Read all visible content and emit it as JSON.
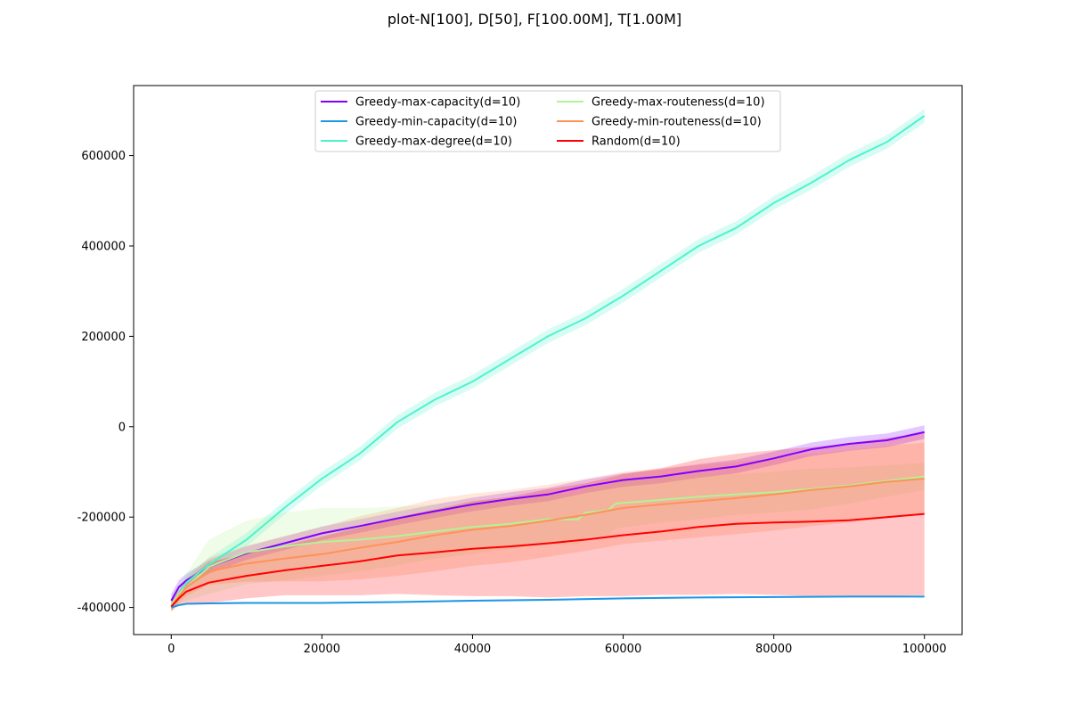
{
  "chart_data": {
    "type": "line",
    "title": "plot-N[100], D[50], F[100.00M], T[1.00M]",
    "xlabel": "",
    "ylabel": "",
    "xlim": [
      -5000,
      105000
    ],
    "ylim": [
      -460000,
      755000
    ],
    "x_ticks": [
      0,
      20000,
      40000,
      60000,
      80000,
      100000
    ],
    "x_tick_labels": [
      "0",
      "20000",
      "40000",
      "60000",
      "80000",
      "100000"
    ],
    "y_ticks": [
      -400000,
      -200000,
      0,
      200000,
      400000,
      600000
    ],
    "y_tick_labels": [
      "-400000",
      "-200000",
      "0",
      "200000",
      "400000",
      "600000"
    ],
    "grid": false,
    "legend_position": "upper-center",
    "legend_columns": 2,
    "series": [
      {
        "name": "Greedy-max-capacity(d=10)",
        "color": "#8000ff",
        "x": [
          0,
          1000,
          2000,
          5000,
          10000,
          15000,
          20000,
          25000,
          30000,
          35000,
          40000,
          45000,
          50000,
          55000,
          60000,
          65000,
          70000,
          75000,
          80000,
          85000,
          90000,
          95000,
          100000
        ],
        "values": [
          -385000,
          -355000,
          -340000,
          -310000,
          -280000,
          -258000,
          -236000,
          -220000,
          -203000,
          -187000,
          -172000,
          -160000,
          -150000,
          -132000,
          -118000,
          -110000,
          -98000,
          -88000,
          -70000,
          -50000,
          -38000,
          -30000,
          -12000
        ],
        "band_width": [
          15000,
          15000,
          15000,
          15000,
          15000,
          15000,
          15000,
          15000,
          15000,
          15000,
          15000,
          15000,
          15000,
          15000,
          15000,
          15000,
          15000,
          15000,
          15000,
          15000,
          15000,
          15000,
          15000
        ]
      },
      {
        "name": "Greedy-min-capacity(d=10)",
        "color": "#1e96e6",
        "x": [
          0,
          1000,
          2000,
          5000,
          10000,
          20000,
          30000,
          40000,
          50000,
          60000,
          70000,
          80000,
          90000,
          100000
        ],
        "values": [
          -400000,
          -395000,
          -392000,
          -391000,
          -390000,
          -390000,
          -388000,
          -385000,
          -383000,
          -380000,
          -378000,
          -377000,
          -376000,
          -376000
        ],
        "band_width": [
          2000,
          2000,
          2000,
          2000,
          2000,
          2000,
          2000,
          2000,
          2000,
          2000,
          2000,
          2000,
          2000,
          2000
        ]
      },
      {
        "name": "Greedy-max-degree(d=10)",
        "color": "#4df3ce",
        "x": [
          0,
          1000,
          2000,
          5000,
          10000,
          15000,
          20000,
          25000,
          30000,
          35000,
          40000,
          45000,
          50000,
          55000,
          60000,
          65000,
          70000,
          75000,
          80000,
          85000,
          90000,
          95000,
          100000
        ],
        "values": [
          -395000,
          -370000,
          -345000,
          -305000,
          -250000,
          -180000,
          -115000,
          -60000,
          10000,
          60000,
          100000,
          150000,
          200000,
          240000,
          290000,
          345000,
          400000,
          440000,
          495000,
          540000,
          590000,
          630000,
          688000
        ],
        "band_width": [
          15000,
          15000,
          15000,
          15000,
          15000,
          15000,
          15000,
          15000,
          15000,
          15000,
          15000,
          15000,
          15000,
          15000,
          15000,
          15000,
          15000,
          15000,
          15000,
          15000,
          15000,
          15000,
          15000
        ]
      },
      {
        "name": "Greedy-max-routeness(d=10)",
        "color": "#b2f396",
        "x": [
          0,
          1000,
          2000,
          5000,
          10000,
          15000,
          20000,
          25000,
          30000,
          35000,
          40000,
          45000,
          50000,
          54000,
          55000,
          58000,
          59000,
          65000,
          70000,
          75000,
          80000,
          85000,
          90000,
          95000,
          100000
        ],
        "values": [
          -395000,
          -370000,
          -355000,
          -310000,
          -278000,
          -265000,
          -255000,
          -250000,
          -242000,
          -232000,
          -222000,
          -215000,
          -205000,
          -205000,
          -190000,
          -185000,
          -170000,
          -162000,
          -155000,
          -150000,
          -145000,
          -138000,
          -130000,
          -120000,
          -110000
        ],
        "band_width": [
          15000,
          20000,
          30000,
          60000,
          70000,
          75000,
          75000,
          70000,
          65000,
          60000,
          60000,
          55000,
          55000,
          55000,
          55000,
          55000,
          55000,
          50000,
          50000,
          45000,
          45000,
          45000,
          40000,
          35000,
          30000
        ]
      },
      {
        "name": "Greedy-min-routeness(d=10)",
        "color": "#ff9256",
        "x": [
          0,
          1000,
          2000,
          5000,
          10000,
          15000,
          20000,
          25000,
          30000,
          35000,
          40000,
          45000,
          50000,
          55000,
          60000,
          65000,
          70000,
          75000,
          80000,
          85000,
          90000,
          95000,
          100000
        ],
        "values": [
          -398000,
          -375000,
          -355000,
          -320000,
          -303000,
          -292000,
          -282000,
          -268000,
          -255000,
          -240000,
          -228000,
          -220000,
          -208000,
          -195000,
          -180000,
          -172000,
          -165000,
          -158000,
          -150000,
          -140000,
          -132000,
          -122000,
          -115000
        ],
        "band_width": [
          10000,
          15000,
          20000,
          30000,
          40000,
          50000,
          60000,
          70000,
          75000,
          80000,
          80000,
          80000,
          80000,
          80000,
          80000,
          80000,
          80000,
          80000,
          80000,
          80000,
          80000,
          80000,
          80000
        ]
      },
      {
        "name": "Random(d=10)",
        "color": "#ff0000",
        "x": [
          0,
          1000,
          2000,
          5000,
          10000,
          15000,
          20000,
          25000,
          30000,
          35000,
          40000,
          45000,
          50000,
          55000,
          60000,
          65000,
          70000,
          75000,
          80000,
          85000,
          90000,
          95000,
          100000
        ],
        "values": [
          -398000,
          -380000,
          -365000,
          -345000,
          -330000,
          -318000,
          -308000,
          -298000,
          -285000,
          -278000,
          -270000,
          -265000,
          -258000,
          -250000,
          -240000,
          -232000,
          -222000,
          -215000,
          -212000,
          -210000,
          -207000,
          -200000,
          -193000
        ],
        "band_width": [
          10000,
          15000,
          25000,
          45000,
          50000,
          55000,
          65000,
          75000,
          85000,
          95000,
          105000,
          110000,
          120000,
          125000,
          135000,
          140000,
          150000,
          155000,
          160000,
          165000,
          170000,
          175000,
          180000
        ]
      }
    ]
  }
}
